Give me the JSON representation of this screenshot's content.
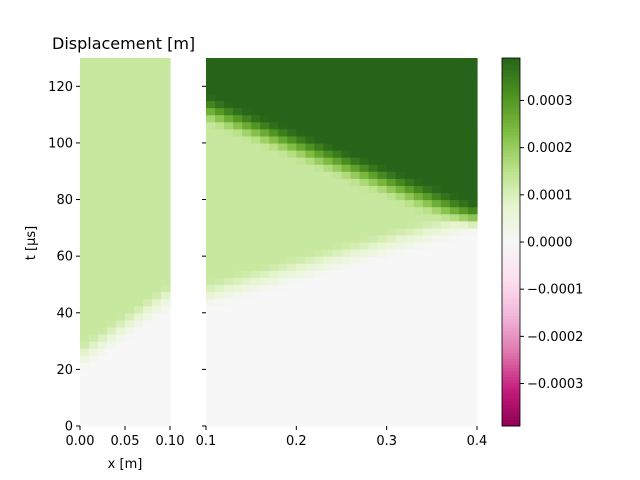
{
  "chart_data": {
    "type": "heatmap",
    "title": "Displacement [m]",
    "ylabel": "t [µs]",
    "xlabel": "x [m]",
    "ylim": [
      0,
      130
    ],
    "yticks": [
      "0",
      "20",
      "40",
      "60",
      "80",
      "100",
      "120"
    ],
    "ytick_values": [
      0,
      20,
      40,
      60,
      80,
      100,
      120
    ],
    "left_panel": {
      "xlim": [
        0.0,
        0.1
      ],
      "xticks": [
        "0.00",
        "0.05",
        "0.10"
      ],
      "xtick_values": [
        0.0,
        0.05,
        0.1
      ]
    },
    "right_panel": {
      "xlim": [
        0.1,
        0.4
      ],
      "xticks": [
        "0.1",
        "0.2",
        "0.3",
        "0.4"
      ],
      "xtick_values": [
        0.1,
        0.2,
        0.3,
        0.4
      ]
    },
    "colorbar": {
      "range": [
        -0.00039,
        0.00039
      ],
      "colormap": "PiYG",
      "ticks": [
        "−0.0003",
        "−0.0002",
        "−0.0001",
        "0.0000",
        "0.0001",
        "0.0002",
        "0.0003"
      ],
      "tick_values": [
        -0.0003,
        -0.0002,
        -0.0001,
        0.0,
        0.0001,
        0.0002,
        0.0003
      ]
    },
    "field": {
      "wave_speed_m_per_us": 0.0048,
      "incident_level": 0.00013,
      "doubled_level": 0.00039,
      "front_width_us": 12,
      "left_front_from": [
        0.0,
        18
      ],
      "left_front_to": [
        0.1,
        40
      ],
      "right_front_from": [
        0.1,
        40
      ],
      "right_front_to": [
        0.4,
        67
      ],
      "reflection_from": [
        0.4,
        67
      ],
      "reflection_to": [
        0.3,
        80
      ]
    }
  }
}
